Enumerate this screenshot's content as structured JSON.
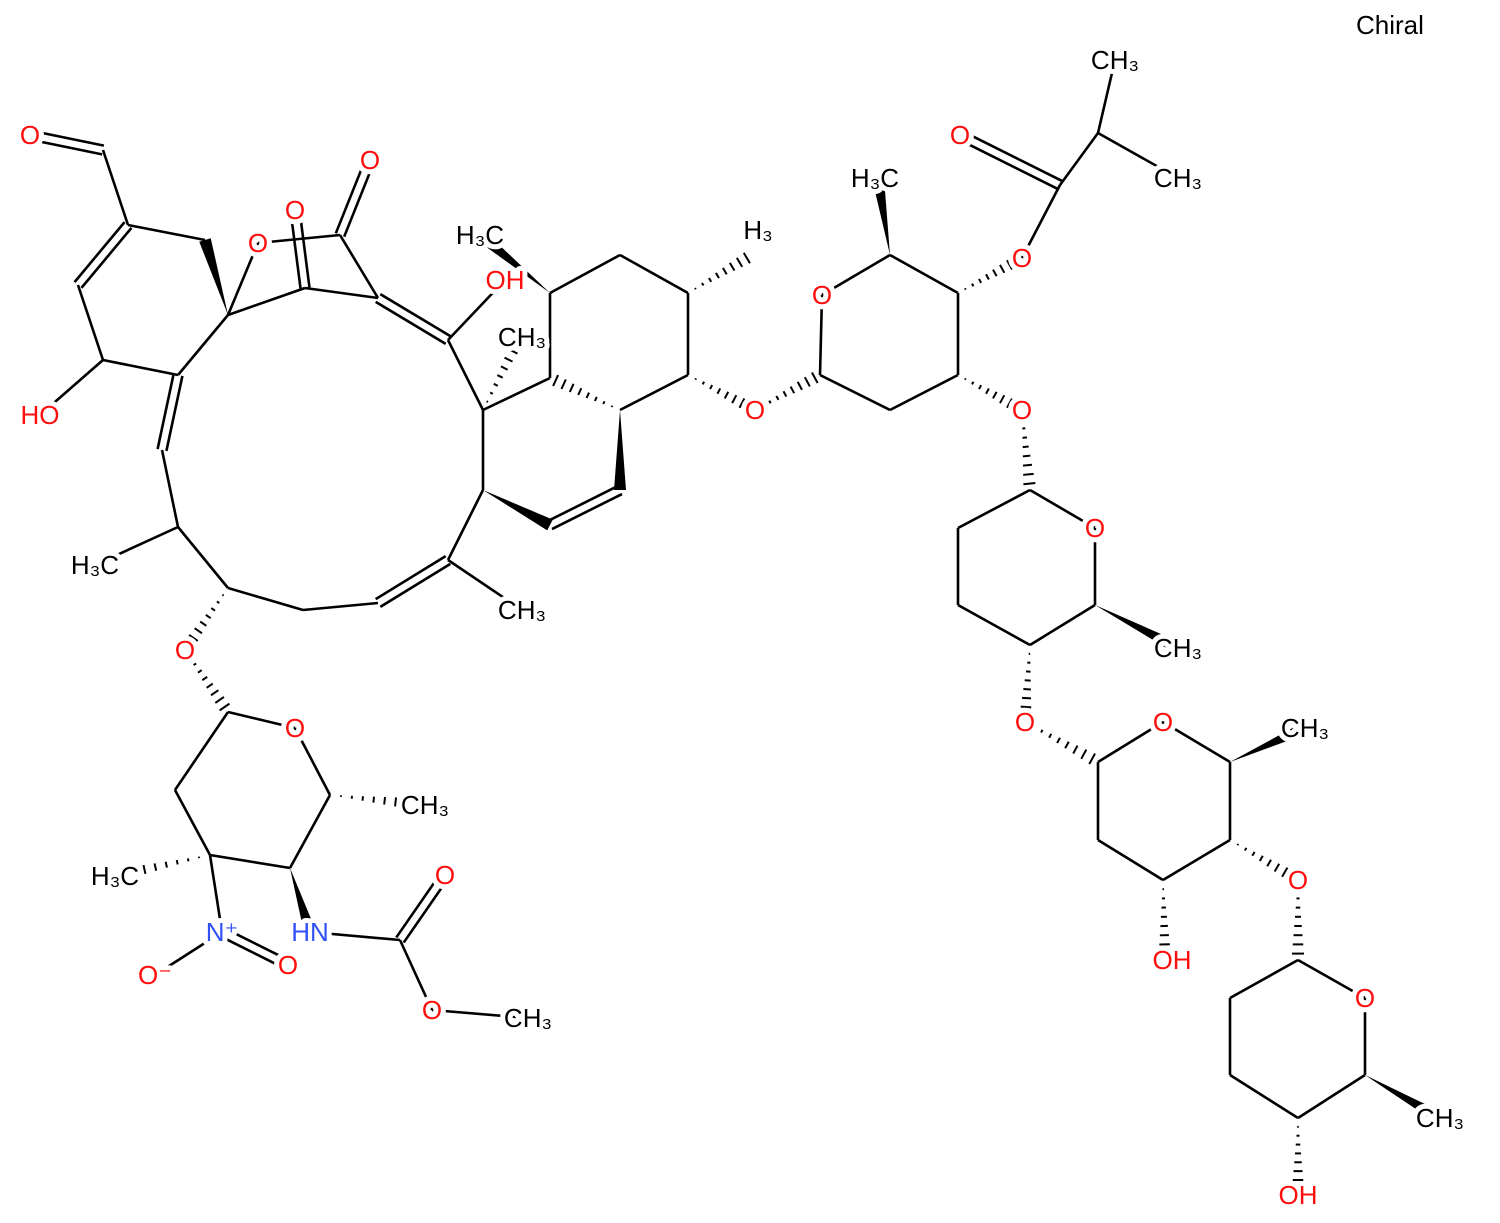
{
  "chiral_label": "Chiral",
  "colors": {
    "bond": "#000000",
    "oxygen": "#ff0d0d",
    "nitrogen": "#3050f8",
    "carbon": "#000000"
  },
  "atom_labels": [
    {
      "text": "O",
      "element": "oxygen"
    },
    {
      "text": "O",
      "element": "oxygen"
    },
    {
      "text": "O",
      "element": "oxygen"
    },
    {
      "text": "O",
      "element": "oxygen"
    },
    {
      "text": "OH",
      "element": "oxygen"
    },
    {
      "text": "HO",
      "element": "oxygen"
    },
    {
      "text": "CH₃",
      "element": "carbon"
    },
    {
      "text": "H₃C",
      "element": "carbon"
    },
    {
      "text": "H₃",
      "element": "carbon"
    },
    {
      "text": "H₃C",
      "element": "carbon"
    },
    {
      "text": "CH₃",
      "element": "carbon"
    },
    {
      "text": "O",
      "element": "oxygen"
    },
    {
      "text": "O",
      "element": "oxygen"
    },
    {
      "text": "O",
      "element": "oxygen"
    },
    {
      "text": "H₃C",
      "element": "carbon"
    },
    {
      "text": "O",
      "element": "oxygen"
    },
    {
      "text": "O",
      "element": "oxygen"
    },
    {
      "text": "CH₃",
      "element": "carbon"
    },
    {
      "text": "CH₃",
      "element": "carbon"
    },
    {
      "text": "O",
      "element": "oxygen"
    },
    {
      "text": "O",
      "element": "oxygen"
    },
    {
      "text": "CH₃",
      "element": "carbon"
    },
    {
      "text": "O",
      "element": "oxygen"
    },
    {
      "text": "O",
      "element": "oxygen"
    },
    {
      "text": "CH₃",
      "element": "carbon"
    },
    {
      "text": "OH",
      "element": "oxygen"
    },
    {
      "text": "O",
      "element": "oxygen"
    },
    {
      "text": "O",
      "element": "oxygen"
    },
    {
      "text": "CH₃",
      "element": "carbon"
    },
    {
      "text": "OH",
      "element": "oxygen"
    },
    {
      "text": "O",
      "element": "oxygen"
    },
    {
      "text": "CH₃",
      "element": "carbon"
    },
    {
      "text": "H₃C",
      "element": "carbon"
    },
    {
      "text": "N⁺",
      "element": "nitrogen"
    },
    {
      "text": "O⁻",
      "element": "oxygen"
    },
    {
      "text": "O",
      "element": "oxygen"
    },
    {
      "text": "HN",
      "element": "nitrogen"
    },
    {
      "text": "O",
      "element": "oxygen"
    },
    {
      "text": "O",
      "element": "oxygen"
    },
    {
      "text": "CH₃",
      "element": "carbon"
    }
  ]
}
